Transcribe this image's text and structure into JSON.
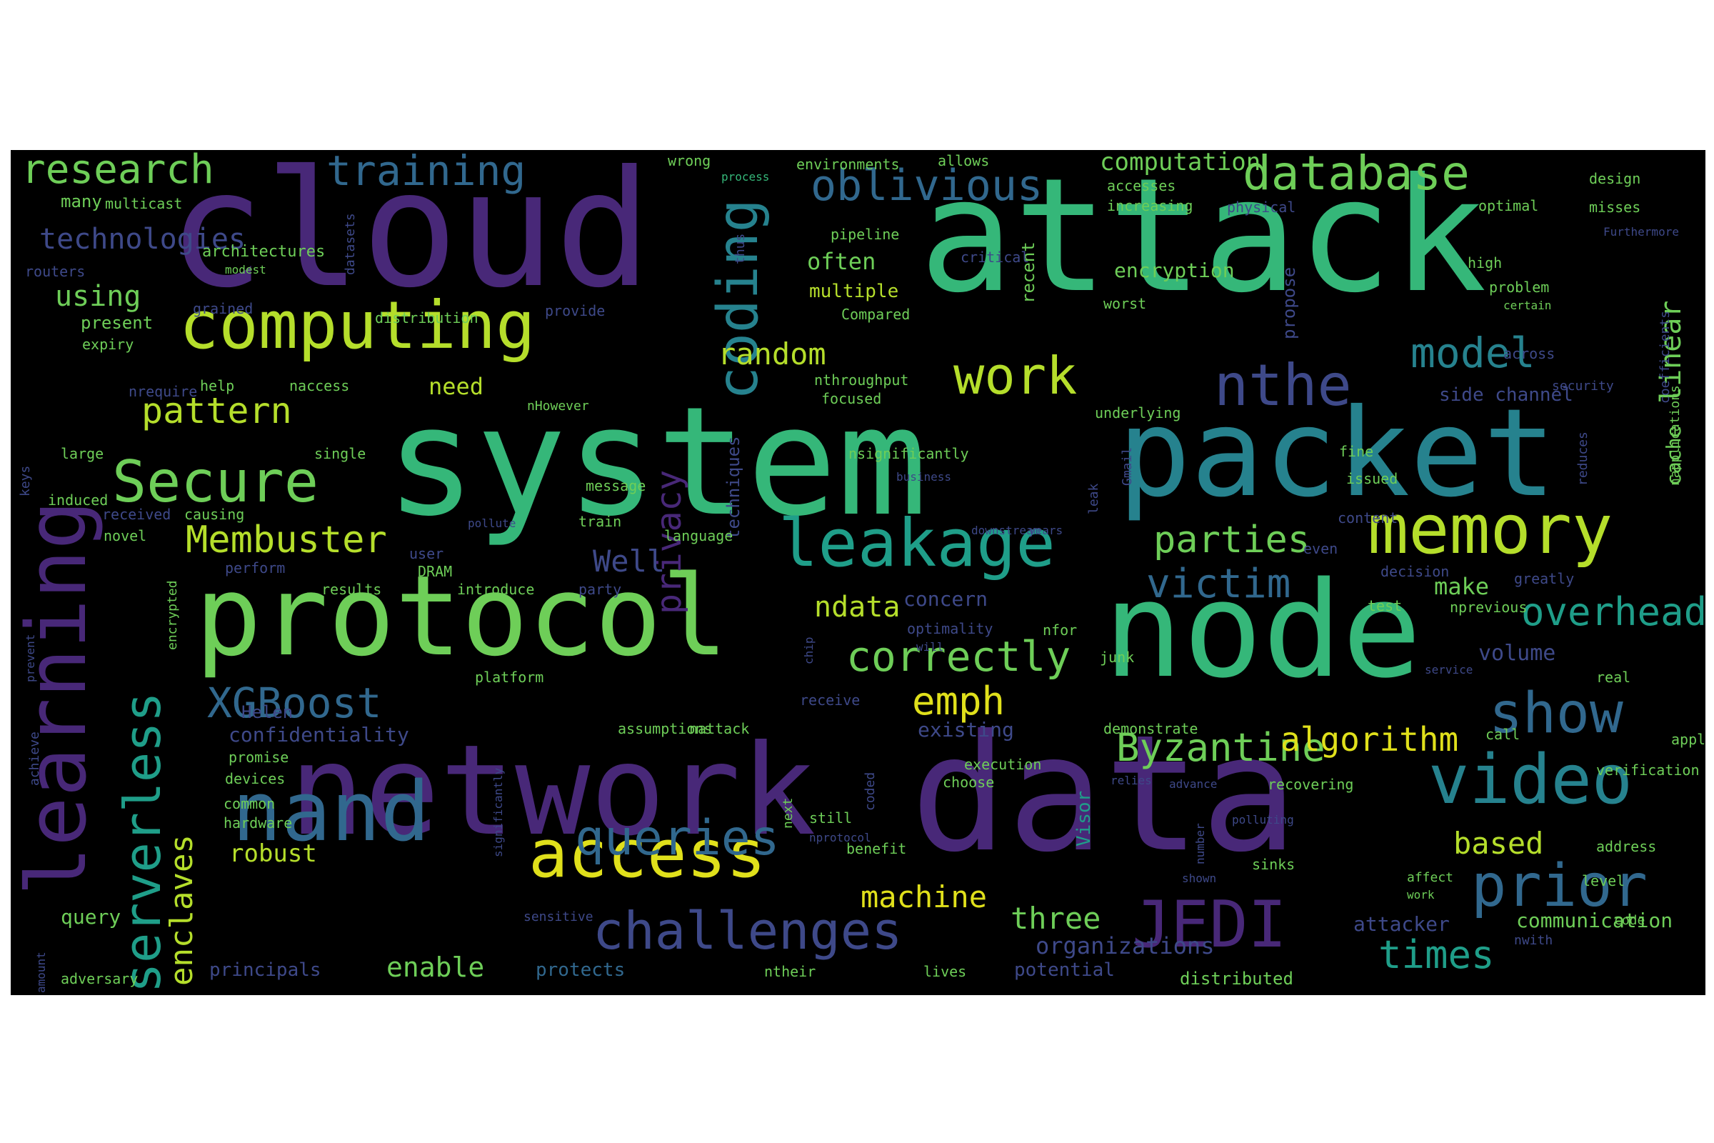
{
  "cloud": {
    "background": "#000000",
    "palette": {
      "purple": "#482878",
      "indigo": "#3e4989",
      "blue": "#31688e",
      "teal": "#26828e",
      "sea": "#1f9e89",
      "green": "#35b779",
      "lime": "#6ece58",
      "yellowgreen": "#b5de2b",
      "yellow": "#e0e01b"
    },
    "words": [
      {
        "text": "attack",
        "color": "green"
      },
      {
        "text": "system",
        "color": "green"
      },
      {
        "text": "cloud",
        "color": "purple"
      },
      {
        "text": "data",
        "color": "purple"
      },
      {
        "text": "network",
        "color": "purple"
      },
      {
        "text": "node",
        "color": "green"
      },
      {
        "text": "packet",
        "color": "teal"
      },
      {
        "text": "protocol",
        "color": "lime"
      },
      {
        "text": "learning",
        "color": "purple"
      },
      {
        "text": "computing",
        "color": "yellowgreen"
      },
      {
        "text": "nand",
        "color": "blue"
      },
      {
        "text": "access",
        "color": "yellow"
      },
      {
        "text": "memory",
        "color": "yellowgreen"
      },
      {
        "text": "leakage",
        "color": "sea"
      },
      {
        "text": "video",
        "color": "teal"
      },
      {
        "text": "JEDI",
        "color": "purple"
      },
      {
        "text": "prior",
        "color": "blue"
      },
      {
        "text": "serverless",
        "color": "sea"
      },
      {
        "text": "challenges",
        "color": "indigo"
      },
      {
        "text": "queries",
        "color": "blue"
      },
      {
        "text": "coding",
        "color": "lime"
      },
      {
        "text": "Secure",
        "color": "yellowgreen"
      },
      {
        "text": "work",
        "color": "indigo"
      },
      {
        "text": "nthe",
        "color": "blue"
      },
      {
        "text": "show",
        "color": "teal"
      },
      {
        "text": "throughput",
        "color": "lime"
      },
      {
        "text": "database",
        "color": "lime"
      },
      {
        "text": "research",
        "color": "blue"
      },
      {
        "text": "oblivious",
        "color": "teal"
      },
      {
        "text": "model",
        "color": "lime"
      },
      {
        "text": "correctly",
        "color": "blue"
      },
      {
        "text": "XGBoost",
        "color": "blue"
      },
      {
        "text": "victim",
        "color": "sea"
      },
      {
        "text": "overhead",
        "color": "sea"
      },
      {
        "text": "times",
        "color": "lime"
      },
      {
        "text": "parties",
        "color": "yellowgreen"
      },
      {
        "text": "Membuster",
        "color": "blue"
      },
      {
        "text": "enclaves",
        "color": "yellowgreen"
      },
      {
        "text": "privacy",
        "color": "purple"
      },
      {
        "text": "training",
        "color": "lime"
      },
      {
        "text": "pattern",
        "color": "yellow"
      },
      {
        "text": "emph",
        "color": "lime"
      },
      {
        "text": "Byzantine",
        "color": "yellow"
      },
      {
        "text": "algorithm",
        "color": "yellowgreen"
      },
      {
        "text": "random",
        "color": "lime"
      },
      {
        "text": "three",
        "color": "yellowgreen"
      },
      {
        "text": "based",
        "color": "yellow"
      },
      {
        "text": "machine",
        "color": "lime"
      },
      {
        "text": "linear",
        "color": "lime"
      },
      {
        "text": "enable",
        "color": "indigo"
      },
      {
        "text": "Well",
        "color": "yellowgreen"
      },
      {
        "text": "ndata",
        "color": "lime"
      },
      {
        "text": "using",
        "color": "indigo"
      },
      {
        "text": "technologies",
        "color": "yellowgreen"
      },
      {
        "text": "robust",
        "color": "lime"
      },
      {
        "text": "computation",
        "color": "yellowgreen"
      },
      {
        "text": "need",
        "color": "lime"
      },
      {
        "text": "make",
        "color": "lime"
      },
      {
        "text": "often",
        "color": "indigo"
      },
      {
        "text": "organizations",
        "color": "indigo"
      },
      {
        "text": "volume",
        "color": "lime"
      },
      {
        "text": "encryption",
        "color": "indigo"
      },
      {
        "text": "existing",
        "color": "indigo"
      },
      {
        "text": "concern",
        "color": "yellowgreen"
      },
      {
        "text": "multiple",
        "color": "indigo"
      },
      {
        "text": "attacker",
        "color": "lime"
      },
      {
        "text": "communication",
        "color": "indigo"
      },
      {
        "text": "confidentiality",
        "color": "blue"
      },
      {
        "text": "protects",
        "color": "indigo"
      },
      {
        "text": "potential",
        "color": "indigo"
      },
      {
        "text": "principals",
        "color": "indigo"
      },
      {
        "text": "side channel",
        "color": "lime"
      },
      {
        "text": "distributed",
        "color": "indigo"
      },
      {
        "text": "Helen",
        "color": "lime"
      },
      {
        "text": "many",
        "color": "lime"
      },
      {
        "text": "present",
        "color": "lime"
      },
      {
        "text": "recent",
        "color": "sea"
      },
      {
        "text": "Visor",
        "color": "lime"
      },
      {
        "text": "cache",
        "color": "indigo"
      },
      {
        "text": "propose",
        "color": "indigo"
      },
      {
        "text": "techniques",
        "color": "lime"
      },
      {
        "text": "architectures",
        "color": "lime"
      },
      {
        "text": "environments",
        "color": "lime"
      },
      {
        "text": "pipeline",
        "color": "lime"
      },
      {
        "text": "allows",
        "color": "lime"
      },
      {
        "text": "wrong",
        "color": "green"
      },
      {
        "text": "process",
        "color": "lime"
      },
      {
        "text": "accesses",
        "color": "lime"
      },
      {
        "text": "increasing",
        "color": "indigo"
      },
      {
        "text": "physical",
        "color": "lime"
      },
      {
        "text": "optimal",
        "color": "lime"
      },
      {
        "text": "design",
        "color": "lime"
      },
      {
        "text": "misses",
        "color": "lime"
      },
      {
        "text": "multicast",
        "color": "indigo"
      },
      {
        "text": "routers",
        "color": "lime"
      },
      {
        "text": "modest",
        "color": "indigo"
      },
      {
        "text": "datasets",
        "color": "lime"
      },
      {
        "text": "distribution",
        "color": "indigo"
      },
      {
        "text": "provide",
        "color": "lime"
      },
      {
        "text": "Compared",
        "color": "lime"
      },
      {
        "text": "worst",
        "color": "indigo"
      },
      {
        "text": "critical",
        "color": "lime"
      },
      {
        "text": "high",
        "color": "lime"
      },
      {
        "text": "problem",
        "color": "lime"
      },
      {
        "text": "certain",
        "color": "indigo"
      },
      {
        "text": "thus",
        "color": "indigo"
      },
      {
        "text": "Furthermore",
        "color": "indigo"
      },
      {
        "text": "grained",
        "color": "lime"
      },
      {
        "text": "expiry",
        "color": "indigo"
      },
      {
        "text": "across",
        "color": "indigo"
      },
      {
        "text": "nrequire",
        "color": "lime"
      },
      {
        "text": "help",
        "color": "lime"
      },
      {
        "text": "naccess",
        "color": "lime"
      },
      {
        "text": "nthroughput",
        "color": "lime"
      },
      {
        "text": "focused",
        "color": "indigo"
      },
      {
        "text": "security",
        "color": "indigo"
      },
      {
        "text": "coefficients",
        "color": "indigo"
      },
      {
        "text": "keys",
        "color": "lime"
      },
      {
        "text": "nHowever",
        "color": "lime"
      },
      {
        "text": "underlying",
        "color": "lime"
      },
      {
        "text": "napplications",
        "color": "lime"
      },
      {
        "text": "large",
        "color": "lime"
      },
      {
        "text": "single",
        "color": "lime"
      },
      {
        "text": "nsignificantly",
        "color": "indigo"
      },
      {
        "text": "Gmail",
        "color": "lime"
      },
      {
        "text": "fine",
        "color": "indigo"
      },
      {
        "text": "reduces",
        "color": "indigo"
      },
      {
        "text": "business",
        "color": "indigo"
      },
      {
        "text": "leak",
        "color": "lime"
      },
      {
        "text": "issued",
        "color": "lime"
      },
      {
        "text": "induced",
        "color": "lime"
      },
      {
        "text": "message",
        "color": "indigo"
      },
      {
        "text": "received",
        "color": "lime"
      },
      {
        "text": "causing",
        "color": "indigo"
      },
      {
        "text": "pollute",
        "color": "indigo"
      },
      {
        "text": "downstream",
        "color": "indigo"
      },
      {
        "text": "years",
        "color": "indigo"
      },
      {
        "text": "content",
        "color": "lime"
      },
      {
        "text": "novel",
        "color": "lime"
      },
      {
        "text": "train",
        "color": "lime"
      },
      {
        "text": "language",
        "color": "indigo"
      },
      {
        "text": "user",
        "color": "indigo"
      },
      {
        "text": "even",
        "color": "indigo"
      },
      {
        "text": "perform",
        "color": "lime"
      },
      {
        "text": "DRAM",
        "color": "indigo"
      },
      {
        "text": "decision",
        "color": "indigo"
      },
      {
        "text": "greatly",
        "color": "lime"
      },
      {
        "text": "results",
        "color": "lime"
      },
      {
        "text": "introduce",
        "color": "indigo"
      },
      {
        "text": "party",
        "color": "lime"
      },
      {
        "text": "test",
        "color": "lime"
      },
      {
        "text": "nprevious",
        "color": "indigo"
      },
      {
        "text": "prevent",
        "color": "lime"
      },
      {
        "text": "encrypted",
        "color": "indigo"
      },
      {
        "text": "optimality",
        "color": "indigo"
      },
      {
        "text": "will",
        "color": "lime"
      },
      {
        "text": "nfor",
        "color": "lime"
      },
      {
        "text": "junk",
        "color": "indigo"
      },
      {
        "text": "chip",
        "color": "lime"
      },
      {
        "text": "platform",
        "color": "indigo"
      },
      {
        "text": "receive",
        "color": "indigo"
      },
      {
        "text": "service",
        "color": "lime"
      },
      {
        "text": "real",
        "color": "lime"
      },
      {
        "text": "promise",
        "color": "lime"
      },
      {
        "text": "assumptions",
        "color": "lime"
      },
      {
        "text": "nattack",
        "color": "lime"
      },
      {
        "text": "demonstrate",
        "color": "lime"
      },
      {
        "text": "call",
        "color": "lime"
      },
      {
        "text": "applications",
        "color": "indigo"
      },
      {
        "text": "achieve",
        "color": "lime"
      },
      {
        "text": "devices",
        "color": "lime"
      },
      {
        "text": "common",
        "color": "lime"
      },
      {
        "text": "hardware",
        "color": "indigo"
      },
      {
        "text": "coded",
        "color": "lime"
      },
      {
        "text": "execution",
        "color": "lime"
      },
      {
        "text": "choose",
        "color": "indigo"
      },
      {
        "text": "relies",
        "color": "indigo"
      },
      {
        "text": "advance",
        "color": "lime"
      },
      {
        "text": "verification",
        "color": "lime"
      },
      {
        "text": "recovering",
        "color": "lime"
      },
      {
        "text": "next",
        "color": "lime"
      },
      {
        "text": "still",
        "color": "indigo"
      },
      {
        "text": "nprotocol",
        "color": "lime"
      },
      {
        "text": "benefit",
        "color": "indigo"
      },
      {
        "text": "significantly",
        "color": "indigo"
      },
      {
        "text": "polluting",
        "color": "lime"
      },
      {
        "text": "address",
        "color": "indigo"
      },
      {
        "text": "number",
        "color": "lime"
      },
      {
        "text": "sinks",
        "color": "indigo"
      },
      {
        "text": "shown",
        "color": "lime"
      },
      {
        "text": "affect",
        "color": "lime"
      },
      {
        "text": "work",
        "color": "lime"
      },
      {
        "text": "level",
        "color": "lime"
      },
      {
        "text": "query",
        "color": "indigo"
      },
      {
        "text": "sensitive",
        "color": "indigo"
      },
      {
        "text": "nwith",
        "color": "lime"
      },
      {
        "text": "code",
        "color": "indigo"
      },
      {
        "text": "amount",
        "color": "lime"
      },
      {
        "text": "adversary",
        "color": "lime"
      },
      {
        "text": "ntheir",
        "color": "lime"
      },
      {
        "text": "lives",
        "color": "indigo"
      }
    ]
  }
}
